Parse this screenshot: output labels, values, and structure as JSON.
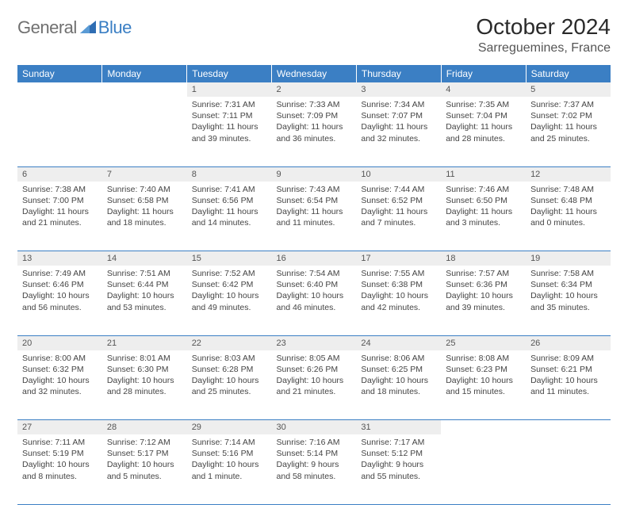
{
  "logo": {
    "general": "General",
    "blue": "Blue"
  },
  "title": "October 2024",
  "location": "Sarreguemines, France",
  "colors": {
    "header_bg": "#3b7fc4",
    "header_text": "#ffffff",
    "daynum_bg": "#eeeeee",
    "row_border": "#3b7fc4",
    "body_text": "#444444",
    "logo_grey": "#707070",
    "logo_blue": "#3b7fc4"
  },
  "weekdays": [
    "Sunday",
    "Monday",
    "Tuesday",
    "Wednesday",
    "Thursday",
    "Friday",
    "Saturday"
  ],
  "weeks": [
    {
      "nums": [
        "",
        "",
        "1",
        "2",
        "3",
        "4",
        "5"
      ],
      "cells": [
        null,
        null,
        {
          "sunrise": "Sunrise: 7:31 AM",
          "sunset": "Sunset: 7:11 PM",
          "day1": "Daylight: 11 hours",
          "day2": "and 39 minutes."
        },
        {
          "sunrise": "Sunrise: 7:33 AM",
          "sunset": "Sunset: 7:09 PM",
          "day1": "Daylight: 11 hours",
          "day2": "and 36 minutes."
        },
        {
          "sunrise": "Sunrise: 7:34 AM",
          "sunset": "Sunset: 7:07 PM",
          "day1": "Daylight: 11 hours",
          "day2": "and 32 minutes."
        },
        {
          "sunrise": "Sunrise: 7:35 AM",
          "sunset": "Sunset: 7:04 PM",
          "day1": "Daylight: 11 hours",
          "day2": "and 28 minutes."
        },
        {
          "sunrise": "Sunrise: 7:37 AM",
          "sunset": "Sunset: 7:02 PM",
          "day1": "Daylight: 11 hours",
          "day2": "and 25 minutes."
        }
      ]
    },
    {
      "nums": [
        "6",
        "7",
        "8",
        "9",
        "10",
        "11",
        "12"
      ],
      "cells": [
        {
          "sunrise": "Sunrise: 7:38 AM",
          "sunset": "Sunset: 7:00 PM",
          "day1": "Daylight: 11 hours",
          "day2": "and 21 minutes."
        },
        {
          "sunrise": "Sunrise: 7:40 AM",
          "sunset": "Sunset: 6:58 PM",
          "day1": "Daylight: 11 hours",
          "day2": "and 18 minutes."
        },
        {
          "sunrise": "Sunrise: 7:41 AM",
          "sunset": "Sunset: 6:56 PM",
          "day1": "Daylight: 11 hours",
          "day2": "and 14 minutes."
        },
        {
          "sunrise": "Sunrise: 7:43 AM",
          "sunset": "Sunset: 6:54 PM",
          "day1": "Daylight: 11 hours",
          "day2": "and 11 minutes."
        },
        {
          "sunrise": "Sunrise: 7:44 AM",
          "sunset": "Sunset: 6:52 PM",
          "day1": "Daylight: 11 hours",
          "day2": "and 7 minutes."
        },
        {
          "sunrise": "Sunrise: 7:46 AM",
          "sunset": "Sunset: 6:50 PM",
          "day1": "Daylight: 11 hours",
          "day2": "and 3 minutes."
        },
        {
          "sunrise": "Sunrise: 7:48 AM",
          "sunset": "Sunset: 6:48 PM",
          "day1": "Daylight: 11 hours",
          "day2": "and 0 minutes."
        }
      ]
    },
    {
      "nums": [
        "13",
        "14",
        "15",
        "16",
        "17",
        "18",
        "19"
      ],
      "cells": [
        {
          "sunrise": "Sunrise: 7:49 AM",
          "sunset": "Sunset: 6:46 PM",
          "day1": "Daylight: 10 hours",
          "day2": "and 56 minutes."
        },
        {
          "sunrise": "Sunrise: 7:51 AM",
          "sunset": "Sunset: 6:44 PM",
          "day1": "Daylight: 10 hours",
          "day2": "and 53 minutes."
        },
        {
          "sunrise": "Sunrise: 7:52 AM",
          "sunset": "Sunset: 6:42 PM",
          "day1": "Daylight: 10 hours",
          "day2": "and 49 minutes."
        },
        {
          "sunrise": "Sunrise: 7:54 AM",
          "sunset": "Sunset: 6:40 PM",
          "day1": "Daylight: 10 hours",
          "day2": "and 46 minutes."
        },
        {
          "sunrise": "Sunrise: 7:55 AM",
          "sunset": "Sunset: 6:38 PM",
          "day1": "Daylight: 10 hours",
          "day2": "and 42 minutes."
        },
        {
          "sunrise": "Sunrise: 7:57 AM",
          "sunset": "Sunset: 6:36 PM",
          "day1": "Daylight: 10 hours",
          "day2": "and 39 minutes."
        },
        {
          "sunrise": "Sunrise: 7:58 AM",
          "sunset": "Sunset: 6:34 PM",
          "day1": "Daylight: 10 hours",
          "day2": "and 35 minutes."
        }
      ]
    },
    {
      "nums": [
        "20",
        "21",
        "22",
        "23",
        "24",
        "25",
        "26"
      ],
      "cells": [
        {
          "sunrise": "Sunrise: 8:00 AM",
          "sunset": "Sunset: 6:32 PM",
          "day1": "Daylight: 10 hours",
          "day2": "and 32 minutes."
        },
        {
          "sunrise": "Sunrise: 8:01 AM",
          "sunset": "Sunset: 6:30 PM",
          "day1": "Daylight: 10 hours",
          "day2": "and 28 minutes."
        },
        {
          "sunrise": "Sunrise: 8:03 AM",
          "sunset": "Sunset: 6:28 PM",
          "day1": "Daylight: 10 hours",
          "day2": "and 25 minutes."
        },
        {
          "sunrise": "Sunrise: 8:05 AM",
          "sunset": "Sunset: 6:26 PM",
          "day1": "Daylight: 10 hours",
          "day2": "and 21 minutes."
        },
        {
          "sunrise": "Sunrise: 8:06 AM",
          "sunset": "Sunset: 6:25 PM",
          "day1": "Daylight: 10 hours",
          "day2": "and 18 minutes."
        },
        {
          "sunrise": "Sunrise: 8:08 AM",
          "sunset": "Sunset: 6:23 PM",
          "day1": "Daylight: 10 hours",
          "day2": "and 15 minutes."
        },
        {
          "sunrise": "Sunrise: 8:09 AM",
          "sunset": "Sunset: 6:21 PM",
          "day1": "Daylight: 10 hours",
          "day2": "and 11 minutes."
        }
      ]
    },
    {
      "nums": [
        "27",
        "28",
        "29",
        "30",
        "31",
        "",
        ""
      ],
      "cells": [
        {
          "sunrise": "Sunrise: 7:11 AM",
          "sunset": "Sunset: 5:19 PM",
          "day1": "Daylight: 10 hours",
          "day2": "and 8 minutes."
        },
        {
          "sunrise": "Sunrise: 7:12 AM",
          "sunset": "Sunset: 5:17 PM",
          "day1": "Daylight: 10 hours",
          "day2": "and 5 minutes."
        },
        {
          "sunrise": "Sunrise: 7:14 AM",
          "sunset": "Sunset: 5:16 PM",
          "day1": "Daylight: 10 hours",
          "day2": "and 1 minute."
        },
        {
          "sunrise": "Sunrise: 7:16 AM",
          "sunset": "Sunset: 5:14 PM",
          "day1": "Daylight: 9 hours",
          "day2": "and 58 minutes."
        },
        {
          "sunrise": "Sunrise: 7:17 AM",
          "sunset": "Sunset: 5:12 PM",
          "day1": "Daylight: 9 hours",
          "day2": "and 55 minutes."
        },
        null,
        null
      ]
    }
  ]
}
